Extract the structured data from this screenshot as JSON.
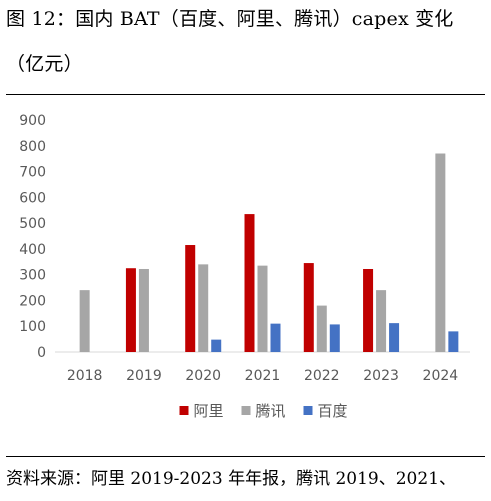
{
  "figure": {
    "title_line1": "图 12：国内 BAT（百度、阿里、腾讯）capex 变化",
    "title_line2": "（亿元）",
    "source": "资料来源：阿里 2019-2023 年年报，腾讯 2019、2021、"
  },
  "chart_data": {
    "type": "bar",
    "categories": [
      "2018",
      "2019",
      "2020",
      "2021",
      "2022",
      "2023",
      "2024"
    ],
    "series": [
      {
        "name": "阿里",
        "color": "#C00000",
        "values": [
          null,
          325,
          415,
          535,
          345,
          322,
          null
        ]
      },
      {
        "name": "腾讯",
        "color": "#A6A6A6",
        "values": [
          240,
          322,
          340,
          335,
          180,
          240,
          770
        ]
      },
      {
        "name": "百度",
        "color": "#4472C4",
        "values": [
          null,
          null,
          48,
          110,
          107,
          112,
          80
        ]
      }
    ],
    "ylim": [
      0,
      900
    ],
    "yticks": [
      "0",
      "100",
      "200",
      "300",
      "400",
      "500",
      "600",
      "700",
      "800",
      "900"
    ],
    "grid": false,
    "legend_position": "bottom",
    "title": "",
    "xlabel": "",
    "ylabel": ""
  }
}
